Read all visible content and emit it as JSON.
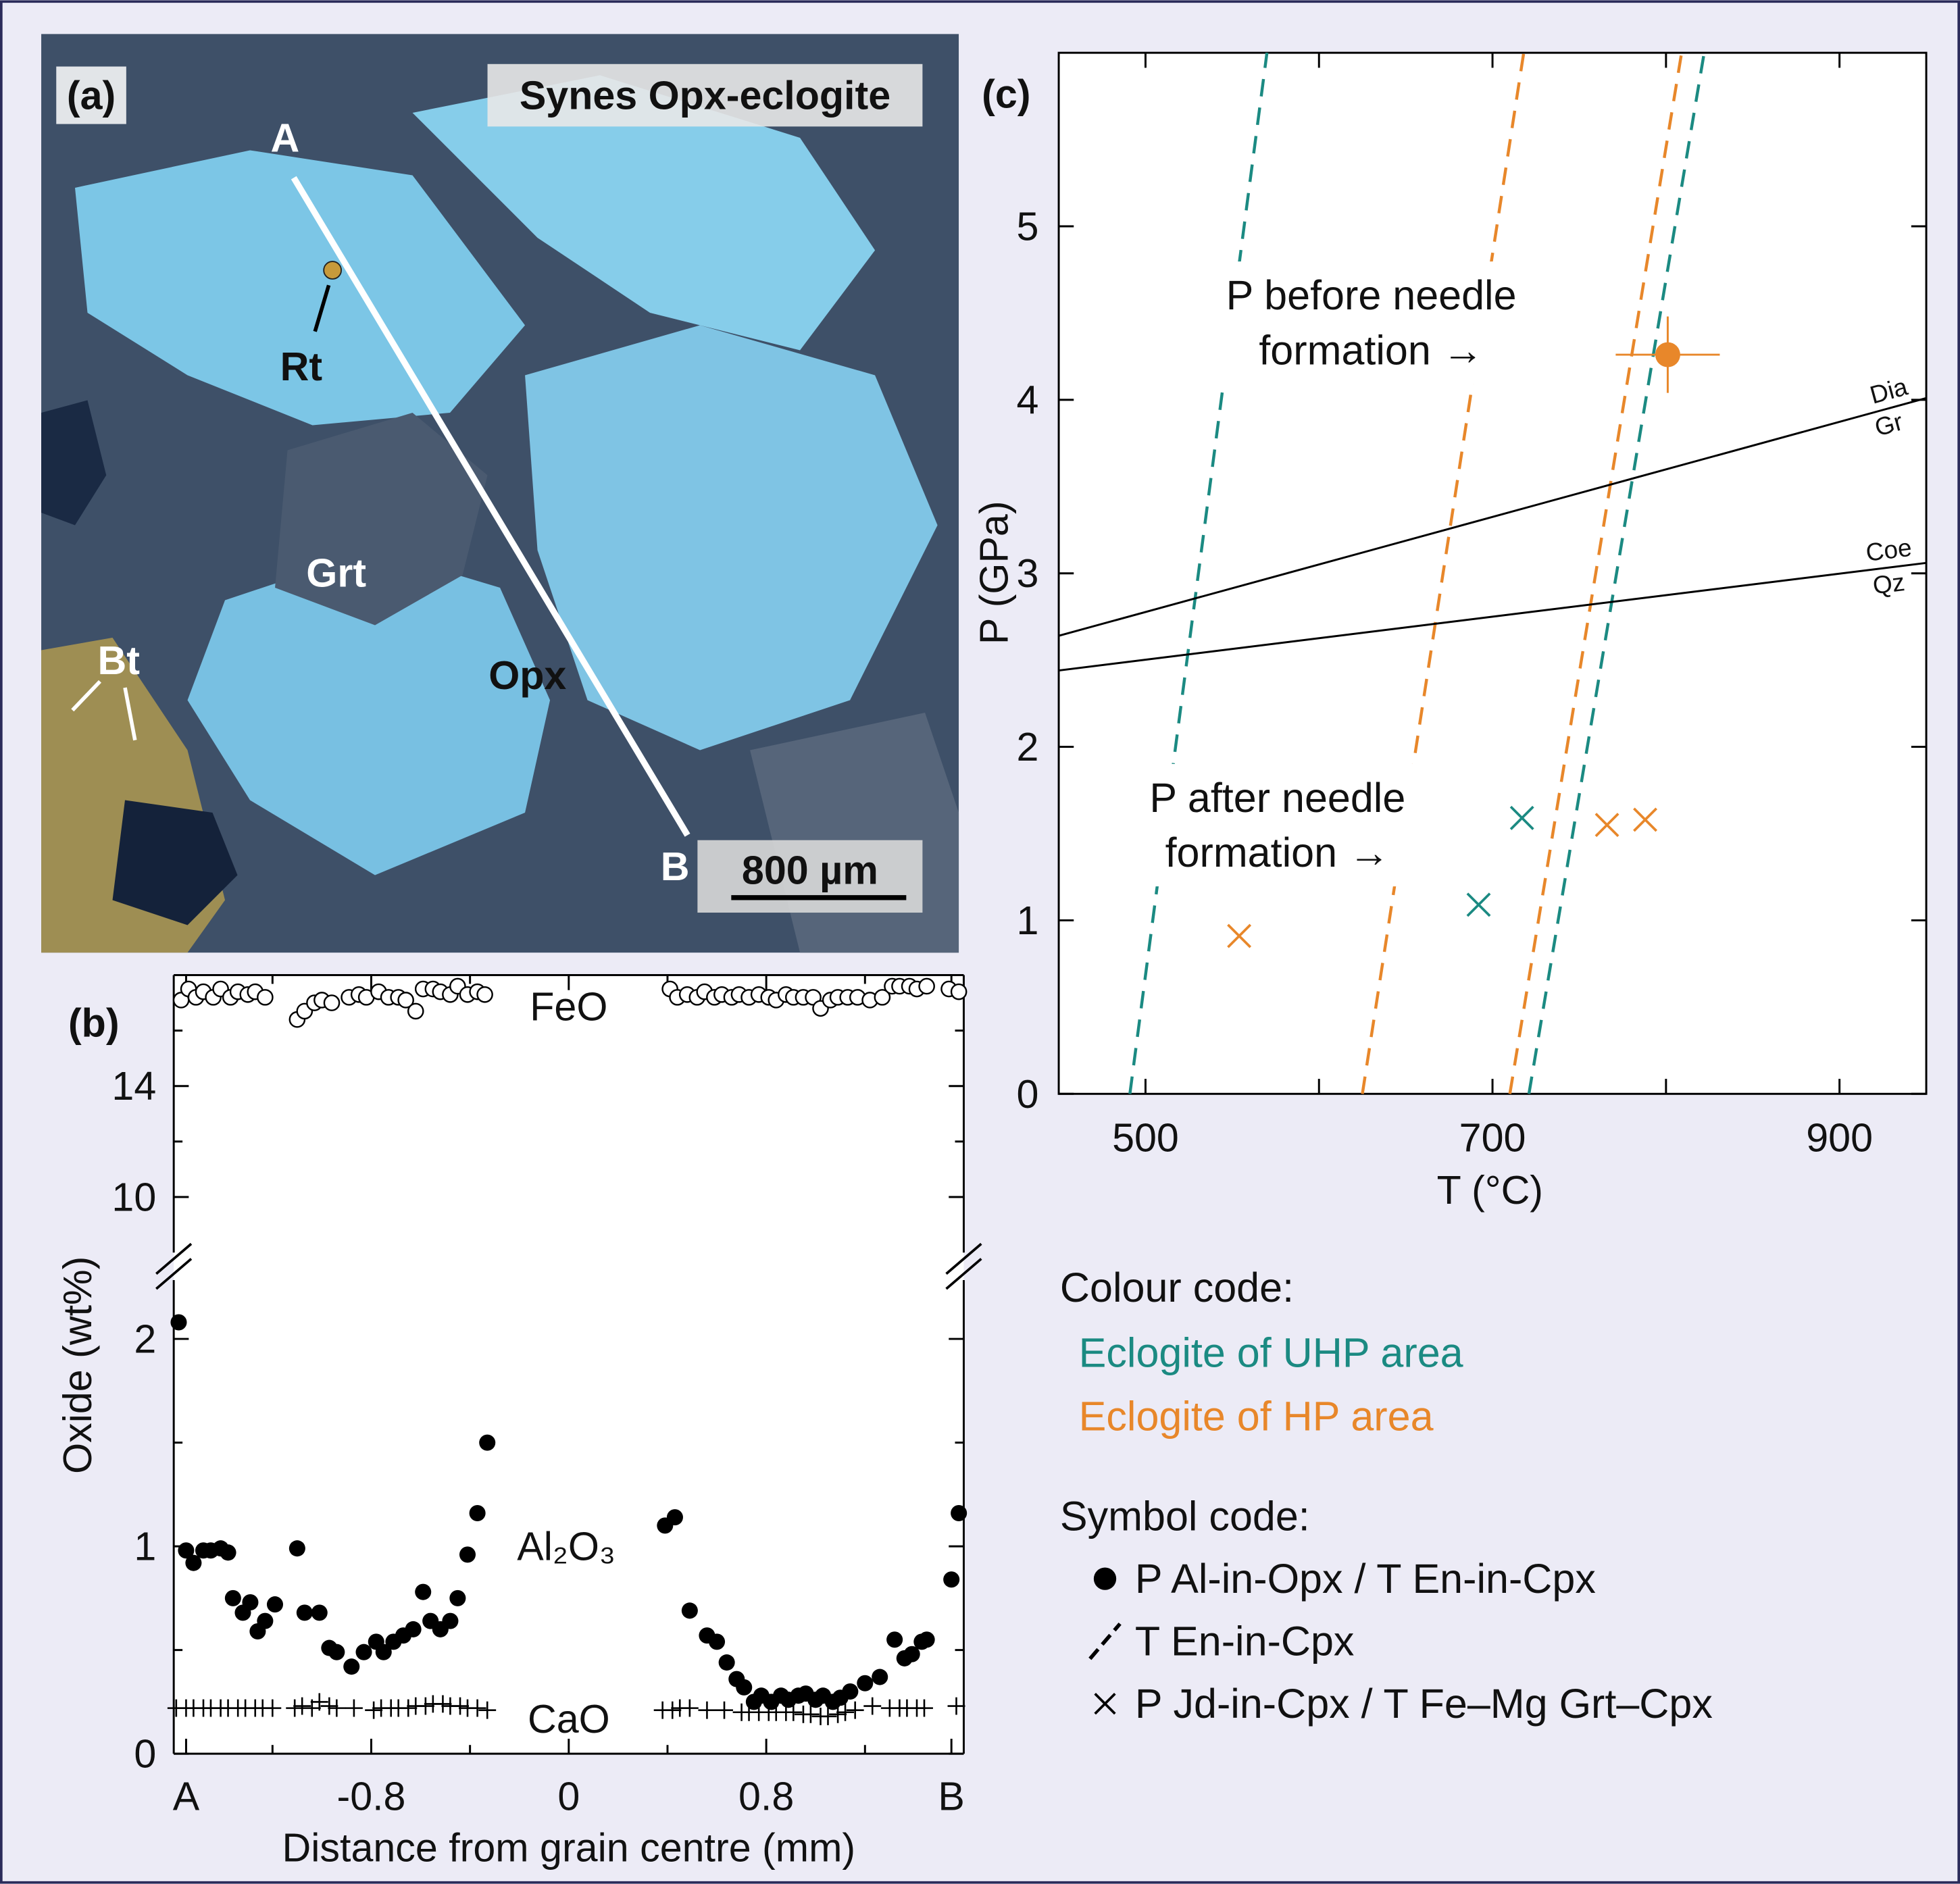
{
  "panel_a": {
    "label": "(a)",
    "title": "Synes Opx-eclogite",
    "profile_ends": [
      "A",
      "B"
    ],
    "minerals": [
      "Rt",
      "Grt",
      "Bt",
      "Opx"
    ],
    "scale_bar": "800 µm"
  },
  "chart_data": [
    {
      "type": "scatter",
      "label": "(b)",
      "xlabel": "Distance from grain centre (mm)",
      "ylabel": "Oxide (wt%)",
      "xlim": [
        -1.6,
        1.6
      ],
      "xticks": [
        {
          "value": -1.55,
          "label": "A"
        },
        -0.8,
        0,
        0.8,
        {
          "value": 1.55,
          "label": "B"
        }
      ],
      "xticks_minor": [
        -1.2,
        -0.4,
        0.4,
        1.2
      ],
      "ylim": [
        0,
        18
      ],
      "ybreak": [
        2.35,
        7.5
      ],
      "yticks": [
        0,
        1,
        2,
        10,
        14
      ],
      "yticks_minor": [
        0.5,
        1.5,
        12,
        16
      ],
      "series": [
        {
          "name": "FeO",
          "marker": "open-circle",
          "color": "#000000",
          "x": [
            -1.57,
            -1.54,
            -1.51,
            -1.48,
            -1.44,
            -1.41,
            -1.37,
            -1.34,
            -1.3,
            -1.27,
            -1.23,
            -1.1,
            -1.07,
            -1.03,
            -1.0,
            -0.96,
            -0.89,
            -0.85,
            -0.82,
            -0.77,
            -0.73,
            -0.69,
            -0.66,
            -0.62,
            -0.59,
            -0.55,
            -0.52,
            -0.48,
            -0.45,
            -0.41,
            -0.37,
            -0.34,
            0.41,
            0.44,
            0.48,
            0.52,
            0.55,
            0.59,
            0.62,
            0.66,
            0.69,
            0.73,
            0.77,
            0.81,
            0.84,
            0.88,
            0.91,
            0.95,
            0.99,
            1.02,
            1.06,
            1.09,
            1.13,
            1.17,
            1.22,
            1.27,
            1.31,
            1.34,
            1.38,
            1.41,
            1.45,
            1.54,
            1.58
          ],
          "values": [
            17.1,
            17.5,
            17.2,
            17.4,
            17.2,
            17.5,
            17.2,
            17.4,
            17.3,
            17.4,
            17.2,
            16.4,
            16.7,
            17.0,
            17.1,
            17.0,
            17.2,
            17.3,
            17.2,
            17.4,
            17.2,
            17.2,
            17.1,
            16.7,
            17.5,
            17.5,
            17.4,
            17.3,
            17.6,
            17.3,
            17.4,
            17.3,
            17.5,
            17.2,
            17.3,
            17.2,
            17.4,
            17.2,
            17.3,
            17.2,
            17.3,
            17.2,
            17.3,
            17.2,
            17.1,
            17.3,
            17.2,
            17.2,
            17.2,
            16.8,
            17.1,
            17.2,
            17.2,
            17.2,
            17.1,
            17.2,
            17.6,
            17.6,
            17.6,
            17.5,
            17.6,
            17.5,
            17.4
          ]
        },
        {
          "name": "Al₂O₃",
          "marker": "circle",
          "color": "#000000",
          "x": [
            -1.58,
            -1.55,
            -1.52,
            -1.48,
            -1.45,
            -1.41,
            -1.38,
            -1.36,
            -1.32,
            -1.29,
            -1.26,
            -1.23,
            -1.19,
            -1.1,
            -1.07,
            -1.01,
            -0.97,
            -0.94,
            -0.88,
            -0.83,
            -0.78,
            -0.75,
            -0.71,
            -0.67,
            -0.63,
            -0.59,
            -0.56,
            -0.52,
            -0.48,
            -0.45,
            -0.41,
            -0.37,
            -0.33,
            0.39,
            0.43,
            0.49,
            0.56,
            0.6,
            0.64,
            0.68,
            0.71,
            0.75,
            0.78,
            0.82,
            0.86,
            0.89,
            0.93,
            0.96,
            1.0,
            1.03,
            1.07,
            1.1,
            1.14,
            1.2,
            1.26,
            1.32,
            1.36,
            1.39,
            1.43,
            1.45,
            1.55,
            1.58
          ],
          "values": [
            2.08,
            0.98,
            0.92,
            0.98,
            0.98,
            0.99,
            0.97,
            0.75,
            0.68,
            0.73,
            0.59,
            0.64,
            0.72,
            0.99,
            0.68,
            0.68,
            0.51,
            0.49,
            0.42,
            0.49,
            0.54,
            0.49,
            0.54,
            0.57,
            0.6,
            0.78,
            0.64,
            0.6,
            0.64,
            0.75,
            0.96,
            1.16,
            1.5,
            1.1,
            1.14,
            0.69,
            0.57,
            0.54,
            0.44,
            0.36,
            0.32,
            0.25,
            0.28,
            0.25,
            0.28,
            0.26,
            0.28,
            0.29,
            0.26,
            0.28,
            0.25,
            0.27,
            0.3,
            0.34,
            0.37,
            0.55,
            0.46,
            0.48,
            0.54,
            0.55,
            0.84,
            1.16
          ]
        },
        {
          "name": "CaO",
          "marker": "plus",
          "color": "#000000",
          "x": [
            -1.59,
            -1.55,
            -1.52,
            -1.48,
            -1.45,
            -1.41,
            -1.38,
            -1.34,
            -1.31,
            -1.27,
            -1.24,
            -1.2,
            -1.11,
            -1.08,
            -1.04,
            -1.01,
            -0.97,
            -0.94,
            -0.87,
            -0.79,
            -0.76,
            -0.72,
            -0.69,
            -0.65,
            -0.62,
            -0.58,
            -0.55,
            -0.51,
            -0.48,
            -0.44,
            -0.41,
            -0.37,
            -0.33,
            0.38,
            0.42,
            0.45,
            0.49,
            0.56,
            0.63,
            0.7,
            0.73,
            0.77,
            0.81,
            0.84,
            0.88,
            0.91,
            0.95,
            0.98,
            1.02,
            1.05,
            1.09,
            1.12,
            1.16,
            1.23,
            1.3,
            1.34,
            1.37,
            1.41,
            1.44,
            1.57
          ],
          "values": [
            0.22,
            0.22,
            0.22,
            0.22,
            0.22,
            0.22,
            0.22,
            0.22,
            0.22,
            0.22,
            0.22,
            0.22,
            0.22,
            0.23,
            0.22,
            0.25,
            0.23,
            0.22,
            0.22,
            0.21,
            0.22,
            0.22,
            0.22,
            0.22,
            0.23,
            0.23,
            0.24,
            0.24,
            0.23,
            0.23,
            0.22,
            0.22,
            0.21,
            0.21,
            0.21,
            0.22,
            0.22,
            0.21,
            0.21,
            0.2,
            0.2,
            0.2,
            0.2,
            0.2,
            0.2,
            0.2,
            0.19,
            0.19,
            0.18,
            0.18,
            0.19,
            0.2,
            0.21,
            0.23,
            0.22,
            0.22,
            0.22,
            0.22,
            0.22,
            0.23
          ]
        }
      ]
    },
    {
      "type": "scatter",
      "label": "(c)",
      "xlabel": "T (°C)",
      "ylabel": "P (GPa)",
      "xlim": [
        450,
        950
      ],
      "xticks": [
        500,
        700,
        900
      ],
      "xticks_minor": [
        600,
        800
      ],
      "ylim": [
        0,
        6
      ],
      "yticks": [
        0,
        1,
        2,
        3,
        4,
        5
      ],
      "series": [
        {
          "type": "line",
          "dash": true,
          "color": "#1b8a82",
          "x": [
            491,
            570
          ],
          "values": [
            0,
            6
          ]
        },
        {
          "type": "line",
          "dash": true,
          "color": "#1b8a82",
          "x": [
            721,
            822
          ],
          "values": [
            0,
            6
          ]
        },
        {
          "type": "line",
          "dash": true,
          "color": "#e8872a",
          "x": [
            625,
            718
          ],
          "values": [
            0,
            6
          ]
        },
        {
          "type": "line",
          "dash": true,
          "color": "#e8872a",
          "x": [
            710,
            809
          ],
          "values": [
            0,
            6
          ]
        },
        {
          "type": "line",
          "dash": false,
          "color": "#000000",
          "x": [
            450,
            950
          ],
          "values": [
            2.64,
            4.01
          ],
          "labels": [
            "Dia",
            "Gr"
          ]
        },
        {
          "type": "line",
          "dash": false,
          "color": "#000000",
          "x": [
            450,
            950
          ],
          "values": [
            2.44,
            3.06
          ],
          "labels": [
            "Coe",
            "Qz"
          ]
        },
        {
          "type": "scatter",
          "marker": "circle",
          "color": "#e8872a",
          "x": [
            801
          ],
          "values": [
            4.26
          ],
          "xerr": [
            30
          ],
          "yerr": [
            0.22
          ]
        },
        {
          "type": "scatter",
          "marker": "cross",
          "color": "#e8872a",
          "x": [
            554,
            766,
            788
          ],
          "values": [
            0.91,
            1.55,
            1.58
          ]
        },
        {
          "type": "scatter",
          "marker": "cross",
          "color": "#1b8a82",
          "x": [
            717,
            692
          ],
          "values": [
            1.59,
            1.09
          ]
        }
      ],
      "annotations": [
        {
          "lines": [
            "P before needle",
            "formation →"
          ]
        },
        {
          "lines": [
            "P after needle",
            "formation →"
          ]
        }
      ],
      "legend": {
        "colour_title": "Colour code:",
        "colour_entries": [
          {
            "label": "Eclogite of UHP area",
            "color": "#1b8a82"
          },
          {
            "label": "Eclogite of HP area",
            "color": "#e8872a"
          }
        ],
        "symbol_title": "Symbol code:",
        "symbol_entries": [
          {
            "label": "P Al-in-Opx / T En-in-Cpx",
            "marker": "circle"
          },
          {
            "label": "T En-in-Cpx",
            "marker": "dash"
          },
          {
            "label": "P Jd-in-Cpx / T Fe–Mg Grt–Cpx",
            "marker": "cross"
          }
        ]
      }
    }
  ]
}
